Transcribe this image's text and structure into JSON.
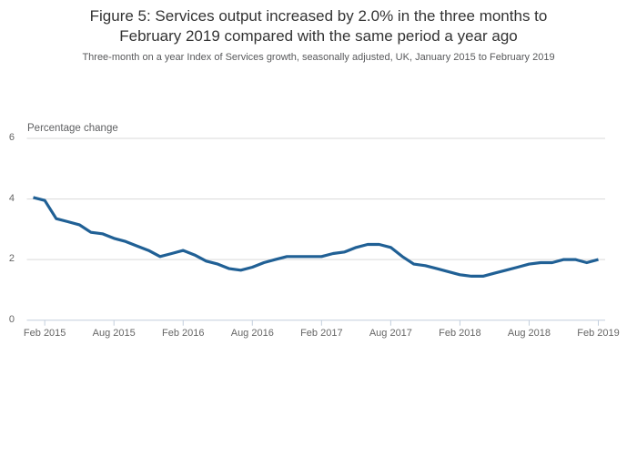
{
  "figure": {
    "title_line1": "Figure 5: Services output increased by 2.0% in the three months to",
    "title_line2": "February 2019 compared with the same period a year ago",
    "subtitle": "Three-month on a year Index of Services growth, seasonally adjusted, UK, January 2015 to February 2019"
  },
  "chart_data": {
    "type": "line",
    "series_name": "Index of Services growth, three-month on a year",
    "unit_label": "Percentage change",
    "x": [
      "Jan 2015",
      "Feb 2015",
      "Mar 2015",
      "Apr 2015",
      "May 2015",
      "Jun 2015",
      "Jul 2015",
      "Aug 2015",
      "Sep 2015",
      "Oct 2015",
      "Nov 2015",
      "Dec 2015",
      "Jan 2016",
      "Feb 2016",
      "Mar 2016",
      "Apr 2016",
      "May 2016",
      "Jun 2016",
      "Jul 2016",
      "Aug 2016",
      "Sep 2016",
      "Oct 2016",
      "Nov 2016",
      "Dec 2016",
      "Jan 2017",
      "Feb 2017",
      "Mar 2017",
      "Apr 2017",
      "May 2017",
      "Jun 2017",
      "Jul 2017",
      "Aug 2017",
      "Sep 2017",
      "Oct 2017",
      "Nov 2017",
      "Dec 2017",
      "Jan 2018",
      "Feb 2018",
      "Mar 2018",
      "Apr 2018",
      "May 2018",
      "Jun 2018",
      "Jul 2018",
      "Aug 2018",
      "Sep 2018",
      "Oct 2018",
      "Nov 2018",
      "Dec 2018",
      "Jan 2019",
      "Feb 2019"
    ],
    "values": [
      4.05,
      3.95,
      3.35,
      3.25,
      3.15,
      2.9,
      2.85,
      2.7,
      2.6,
      2.45,
      2.3,
      2.1,
      2.2,
      2.3,
      2.15,
      1.95,
      1.85,
      1.7,
      1.65,
      1.75,
      1.9,
      2.0,
      2.1,
      2.1,
      2.1,
      2.1,
      2.2,
      2.25,
      2.4,
      2.5,
      2.5,
      2.4,
      2.1,
      1.85,
      1.8,
      1.7,
      1.6,
      1.5,
      1.45,
      1.45,
      1.55,
      1.65,
      1.75,
      1.85,
      1.9,
      1.9,
      2.0,
      2.0,
      1.9,
      2.0
    ],
    "x_tick_labels": [
      "Feb 2015",
      "Aug 2015",
      "Feb 2016",
      "Aug 2016",
      "Feb 2017",
      "Aug 2017",
      "Feb 2018",
      "Aug 2018",
      "Feb 2019"
    ],
    "y_ticks": [
      0,
      2,
      4,
      6
    ],
    "ylim": [
      0,
      6
    ],
    "grid": "horizontal",
    "legend_position": "none",
    "colors": {
      "line": "#206095",
      "gridline": "#d9d9d9",
      "axis": "#c3cfdd",
      "tick_text": "#666666",
      "title_text": "#333333",
      "subtitle_text": "#58595b"
    }
  }
}
